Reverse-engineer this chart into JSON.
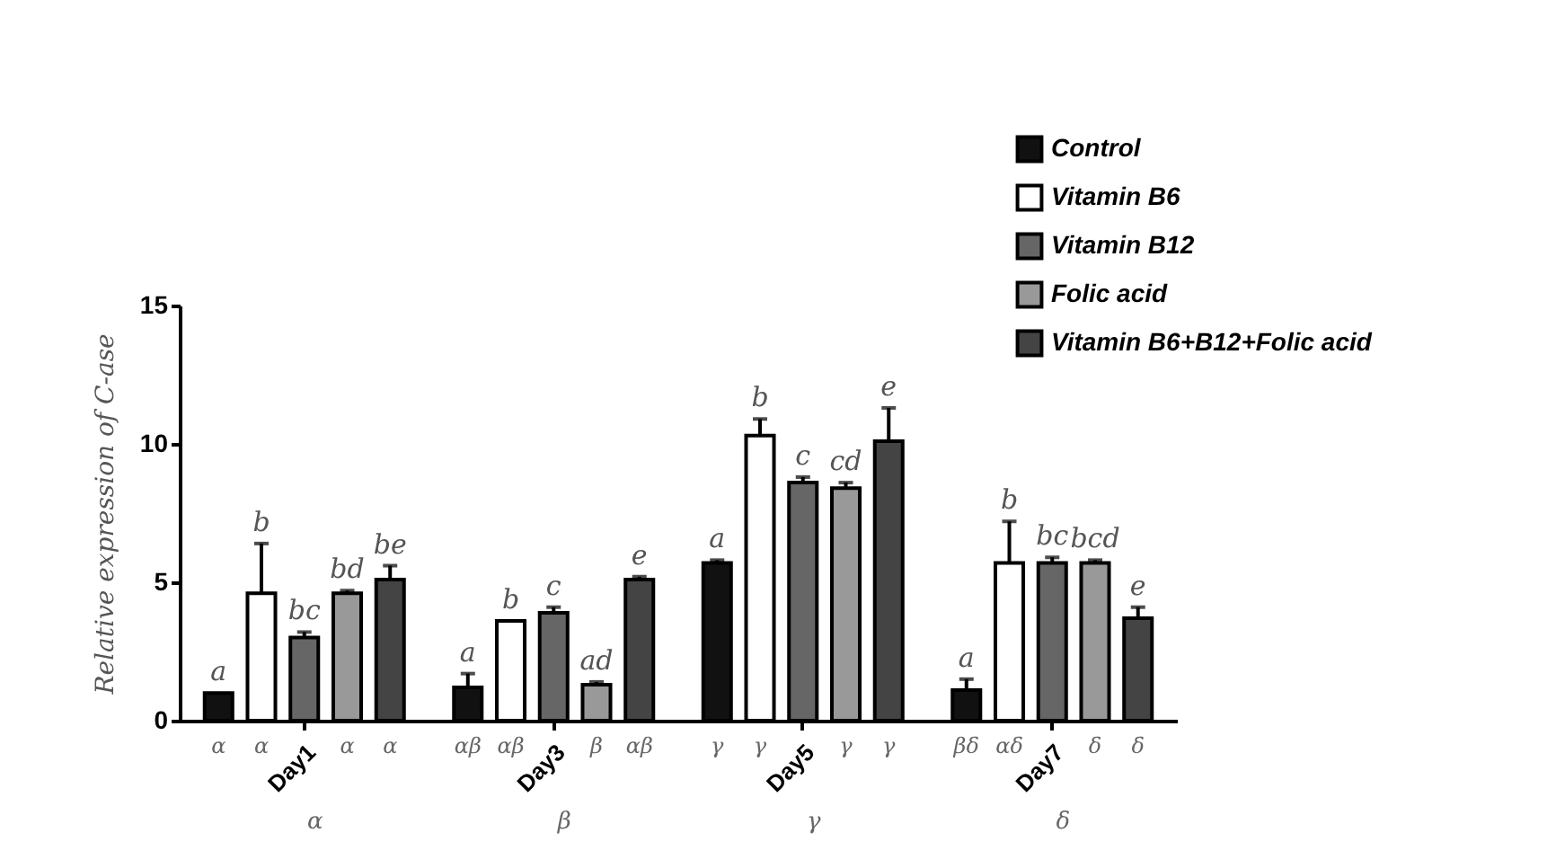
{
  "chart_data": {
    "type": "bar",
    "ylabel": "Relative expression of C-ase",
    "categories": [
      "Day1",
      "Day3",
      "Day5",
      "Day7"
    ],
    "ylim": [
      0,
      15
    ],
    "yticks": [
      0,
      5,
      10,
      15
    ],
    "grid": false,
    "legend": "top right",
    "series": [
      {
        "name": "Control",
        "color": "#111111",
        "values": [
          1.0,
          1.2,
          5.7,
          1.1
        ],
        "errors": [
          null,
          [
            1.2,
            1.7
          ],
          [
            5.7,
            5.8
          ],
          [
            1.1,
            1.5
          ]
        ],
        "value_labels": [
          "a",
          "a",
          "a",
          "a"
        ]
      },
      {
        "name": "Vitamin B6",
        "color": "#ffffff",
        "values": [
          4.6,
          3.6,
          10.3,
          5.7
        ],
        "errors": [
          [
            4.6,
            6.4
          ],
          null,
          [
            10.3,
            10.9
          ],
          [
            5.7,
            7.2
          ]
        ],
        "value_labels": [
          "b",
          "b",
          "b",
          "b"
        ]
      },
      {
        "name": "Vitamin B12",
        "color": "#666666",
        "values": [
          3.0,
          3.9,
          8.6,
          5.7
        ],
        "errors": [
          [
            3.0,
            3.2
          ],
          [
            3.9,
            4.1
          ],
          [
            8.6,
            8.8
          ],
          [
            5.7,
            5.9
          ]
        ],
        "value_labels": [
          "bc",
          "c",
          "c",
          "bc"
        ]
      },
      {
        "name": "Folic acid",
        "color": "#999999",
        "values": [
          4.6,
          1.3,
          8.4,
          5.7
        ],
        "errors": [
          [
            4.6,
            4.7
          ],
          [
            1.3,
            1.4
          ],
          [
            8.4,
            8.6
          ],
          [
            5.7,
            5.8
          ]
        ],
        "value_labels": [
          "bd",
          "ad",
          "cd",
          "bcd"
        ]
      },
      {
        "name": "Vitamin B6+B12+Folic acid",
        "color": "#444444",
        "values": [
          5.1,
          5.1,
          10.1,
          3.7
        ],
        "errors": [
          [
            5.1,
            5.6
          ],
          [
            5.1,
            5.2
          ],
          [
            10.1,
            11.3
          ],
          [
            3.7,
            4.1
          ]
        ],
        "value_labels": [
          "be",
          "e",
          "e",
          "e"
        ]
      }
    ],
    "annotations": [
      "α",
      "α",
      "α",
      "α",
      "αβ",
      "αβ",
      "β",
      "αβ",
      "γ",
      "γ",
      "γ",
      "γ",
      "βδ",
      "αδ",
      "δ",
      "δ",
      "α",
      "β",
      "γ",
      "δ"
    ]
  }
}
